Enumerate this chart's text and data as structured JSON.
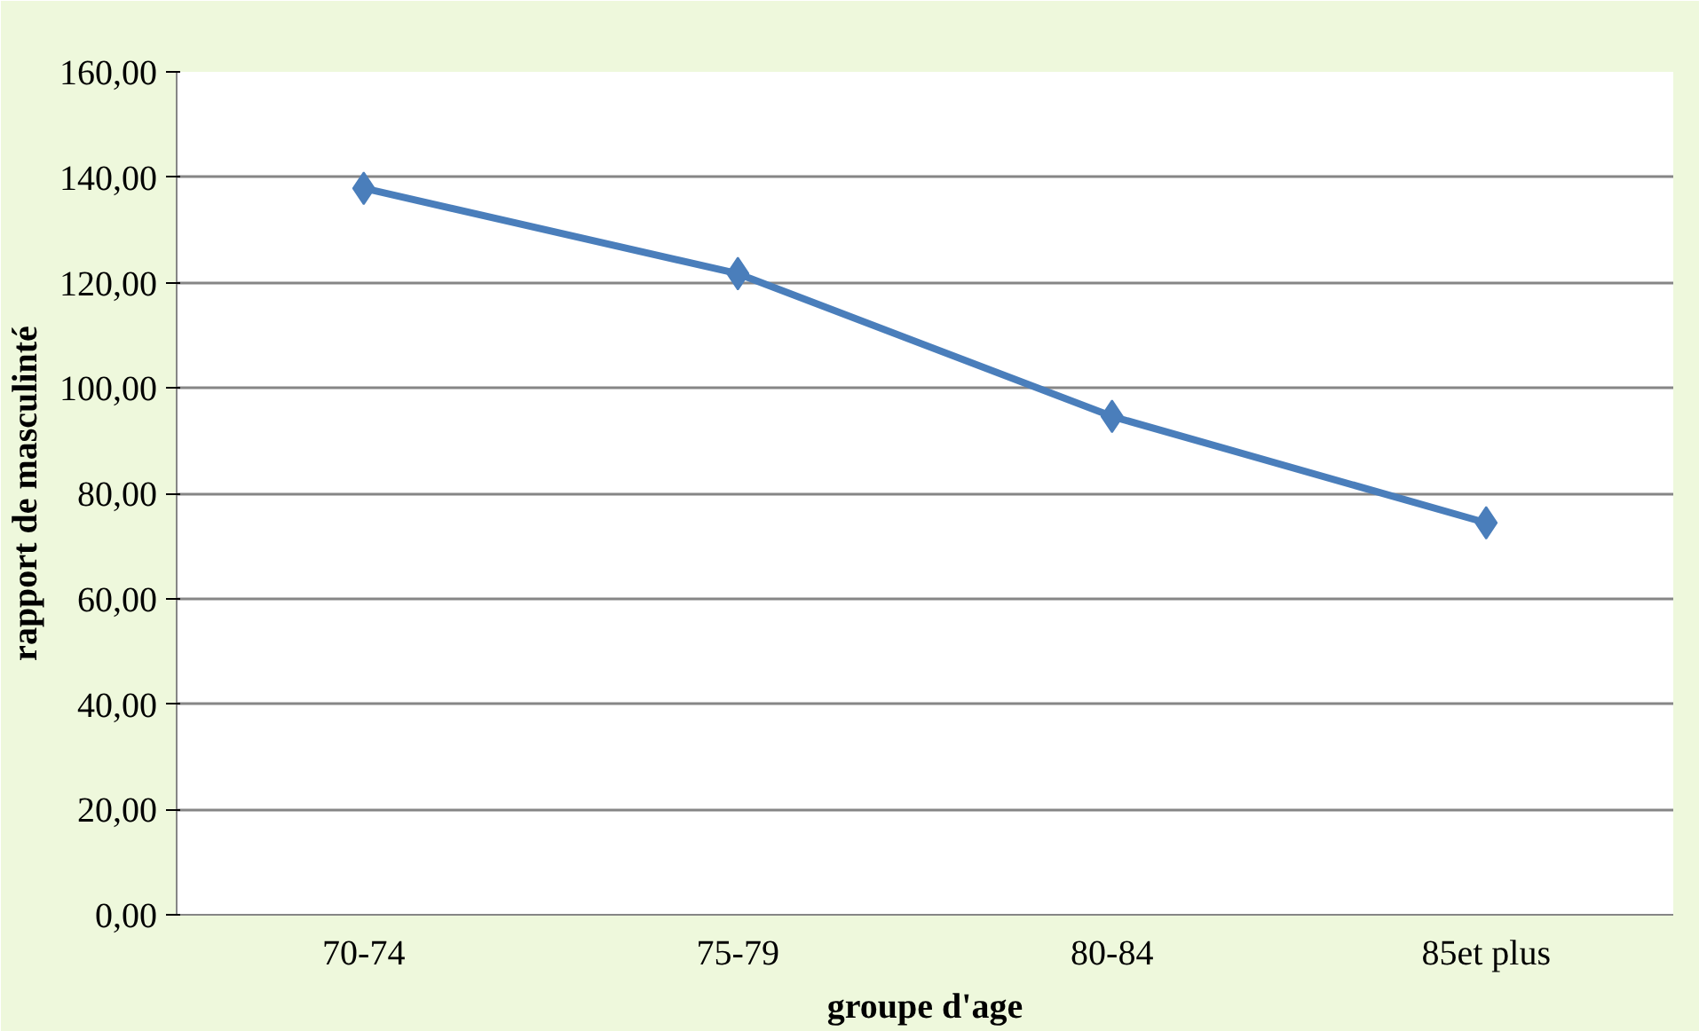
{
  "chart_data": {
    "type": "line",
    "xlabel": "groupe d'age",
    "ylabel": "rapport de masculinté",
    "categories": [
      "70-74",
      "75-79",
      "80-84",
      "85et plus"
    ],
    "series": [
      {
        "color": "#4a7ebb",
        "values": [
          137.9,
          121.7,
          94.6,
          74.4
        ]
      }
    ],
    "ylim": [
      0,
      160
    ],
    "yticks": [
      {
        "value": 0,
        "label": "0,00"
      },
      {
        "value": 20,
        "label": "20,00"
      },
      {
        "value": 40,
        "label": "40,00"
      },
      {
        "value": 60,
        "label": "60,00"
      },
      {
        "value": 80,
        "label": "80,00"
      },
      {
        "value": 100,
        "label": "100,00"
      },
      {
        "value": 120,
        "label": "120,00"
      },
      {
        "value": 140,
        "label": "140,00"
      },
      {
        "value": 160,
        "label": "160,00"
      }
    ],
    "grid": "y",
    "marker": "diamond",
    "line_style": "solid"
  }
}
